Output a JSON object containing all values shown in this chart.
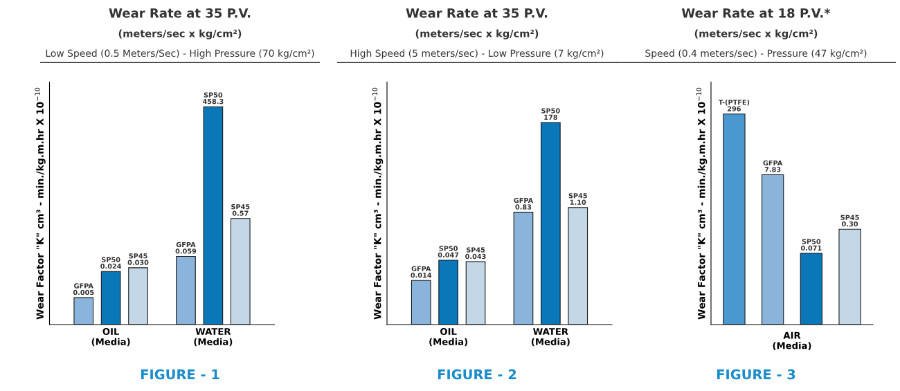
{
  "chart_data": [
    {
      "type": "bar",
      "title": "Wear Rate at 35 P.V.",
      "subtitle": "(meters/sec x kg/cm²)",
      "annotations": [
        "Low Speed (0.5 Meters/Sec) - High Pressure (70 kg/cm²)",
        "FIGURE - 1"
      ],
      "ylabel": "Wear Factor \"K\" cm³ - min./kg.m.hr X 10$^{−10}$",
      "categories": [
        "OIL\n(Media)",
        "WATER\n(Media)"
      ],
      "tick_labels": "x",
      "data_labels": true,
      "log": true,
      "ylim": [
        0.001,
        2000
      ],
      "series": [
        {
          "name": "GFPA",
          "color": "#8bb4dc",
          "values": [
            0.005,
            0.059
          ]
        },
        {
          "name": "SP50",
          "color": "#0a77b8",
          "values": [
            0.024,
            458.3
          ]
        },
        {
          "name": "SP45",
          "color": "#c4d7e7",
          "values": [
            0.03,
            0.57
          ],
          "value_labels": [
            "0.030",
            "0.57"
          ]
        }
      ]
    },
    {
      "type": "bar",
      "title": "Wear Rate at 35 P.V.",
      "subtitle": "(meters/sec x kg/cm²)",
      "annotations": [
        "High Speed (5 meters/sec) - Low Pressure (7 kg/cm²)",
        "FIGURE - 2"
      ],
      "ylabel": "Wear Factor \"K\" cm³ - min./kg.m.hr X 10$^{−10}$",
      "categories": [
        "OIL\n(Media)",
        "WATER\n(Media)"
      ],
      "tick_labels": "x",
      "data_labels": true,
      "log": true,
      "ylim": [
        0.001,
        2000
      ],
      "series": [
        {
          "name": "GFPA",
          "color": "#8bb4dc",
          "values": [
            0.014,
            0.83
          ]
        },
        {
          "name": "SP50",
          "color": "#0a77b8",
          "values": [
            0.047,
            178
          ]
        },
        {
          "name": "SP45",
          "color": "#c4d7e7",
          "values": [
            0.043,
            1.1
          ],
          "value_labels": [
            "0.043",
            "1.10"
          ]
        }
      ]
    },
    {
      "type": "bar",
      "title": "Wear Rate at 18 P.V.*",
      "subtitle": "(meters/sec x kg/cm²)",
      "annotations": [
        "Speed (0.4 meters/sec) - Pressure (47 kg/cm²)",
        "FIGURE - 3",
        {
          "text": "T-(PTFE)",
          "y": 296
        },
        {
          "text": "GFPA",
          "y": 7.83
        },
        {
          "text": "SP50",
          "y": 0.071
        },
        {
          "text": "SP45",
          "y": 0.3
        }
      ],
      "ylabel": "Wear Factor \"K\" cm³ - min./kg.m.hr X 10$^{−10}$",
      "xlabel": "AIR\n(Media)",
      "categories": [
        null,
        null,
        null,
        null
      ],
      "tick_labels": "x",
      "log": true,
      "ylim": [
        0.001,
        2000
      ],
      "series": [
        {
          "colors": [
            "#4a98d0",
            "#8bb4dc",
            "#0a77b8",
            "#c4d7e7"
          ],
          "values": [
            296,
            7.83,
            0.071,
            0.3
          ],
          "value_labels": [
            "296",
            "7.83",
            "0.071",
            "0.30"
          ]
        }
      ]
    }
  ]
}
